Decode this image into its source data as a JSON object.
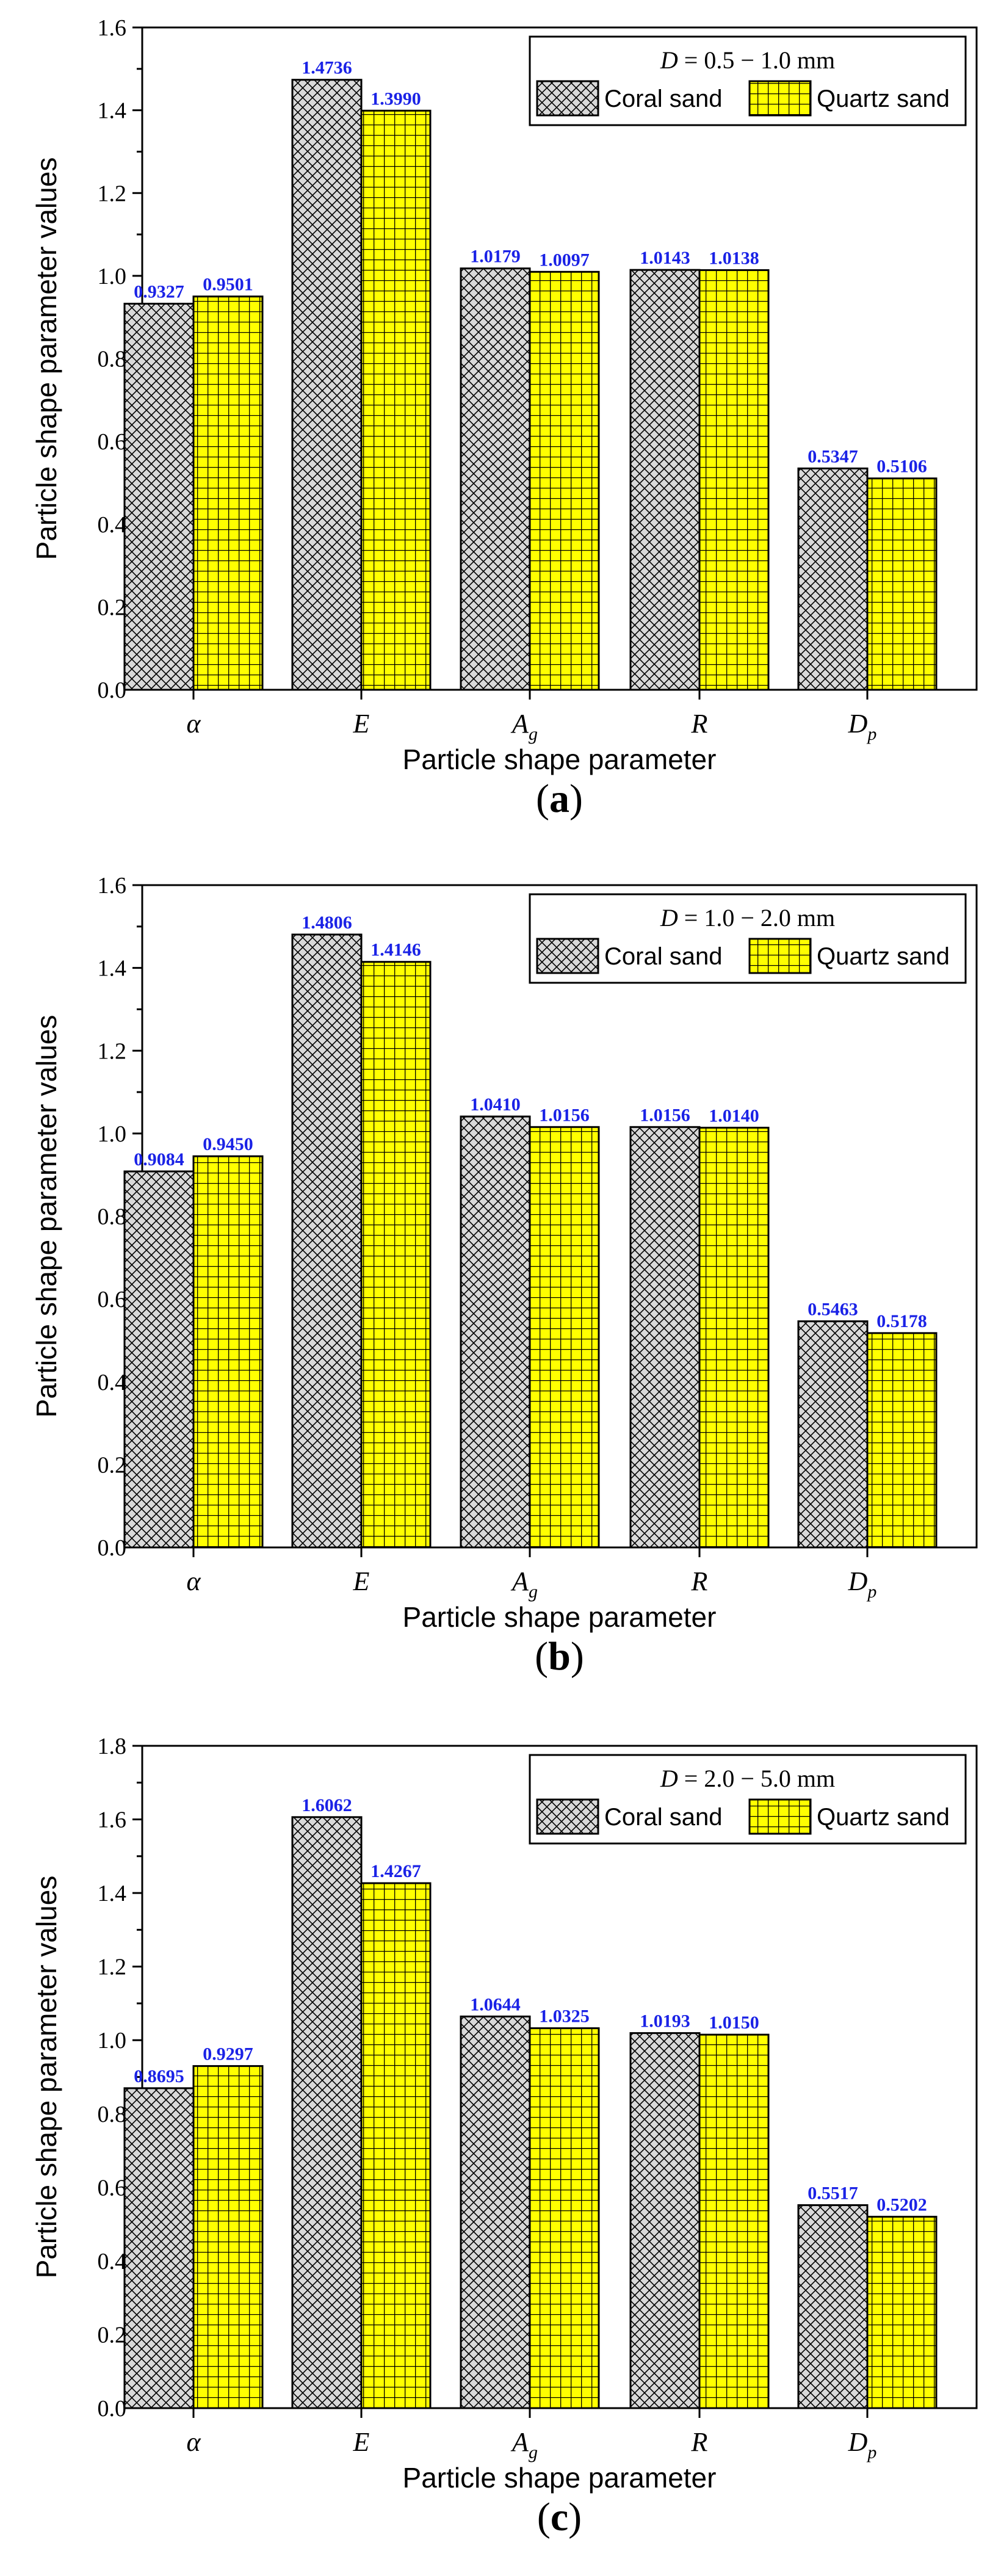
{
  "colors": {
    "coral_fill": "#d9d9d9",
    "quartz_fill": "#ffff00",
    "label_color": "#1a22e6"
  },
  "chart_data": [
    {
      "type": "bar",
      "panel_label": "a",
      "title": "",
      "xlabel": "Particle shape parameter",
      "ylabel": "Particle shape parameter values",
      "ylim": [
        0,
        1.6
      ],
      "yticks": [
        0.0,
        0.2,
        0.4,
        0.6,
        0.8,
        1.0,
        1.2,
        1.4,
        1.6
      ],
      "categories": [
        {
          "main": "α",
          "sub": ""
        },
        {
          "main": "E",
          "sub": ""
        },
        {
          "main": "A",
          "sub": "g"
        },
        {
          "main": "R",
          "sub": ""
        },
        {
          "main": "D",
          "sub": "p"
        }
      ],
      "legend_title": "D = 0.5 − 1.0 mm",
      "legend_title_var": "D",
      "legend_title_rest": " = 0.5 − 1.0 mm",
      "legend_position": "top-right",
      "series": [
        {
          "name": "Coral sand",
          "pattern": "crosshatch",
          "values": [
            0.9327,
            1.4736,
            1.0179,
            1.0143,
            0.5347
          ],
          "labels": [
            "0.9327",
            "1.4736",
            "1.0179",
            "1.0143",
            "0.5347"
          ]
        },
        {
          "name": "Quartz sand",
          "pattern": "grid",
          "values": [
            0.9501,
            1.399,
            1.0097,
            1.0138,
            0.5106
          ],
          "labels": [
            "0.9501",
            "1.3990",
            "1.0097",
            "1.0138",
            "0.5106"
          ]
        }
      ]
    },
    {
      "type": "bar",
      "panel_label": "b",
      "title": "",
      "xlabel": "Particle shape parameter",
      "ylabel": "Particle shape parameter values",
      "ylim": [
        0,
        1.6
      ],
      "yticks": [
        0.0,
        0.2,
        0.4,
        0.6,
        0.8,
        1.0,
        1.2,
        1.4,
        1.6
      ],
      "categories": [
        {
          "main": "α",
          "sub": ""
        },
        {
          "main": "E",
          "sub": ""
        },
        {
          "main": "A",
          "sub": "g"
        },
        {
          "main": "R",
          "sub": ""
        },
        {
          "main": "D",
          "sub": "p"
        }
      ],
      "legend_title": "D = 1.0 − 2.0 mm",
      "legend_title_var": "D",
      "legend_title_rest": " = 1.0 − 2.0 mm",
      "legend_position": "top-right",
      "series": [
        {
          "name": "Coral sand",
          "pattern": "crosshatch",
          "values": [
            0.9084,
            1.4806,
            1.041,
            1.0156,
            0.5463
          ],
          "labels": [
            "0.9084",
            "1.4806",
            "1.0410",
            "1.0156",
            "0.5463"
          ]
        },
        {
          "name": "Quartz sand",
          "pattern": "grid",
          "values": [
            0.945,
            1.4146,
            1.0156,
            1.014,
            0.5178
          ],
          "labels": [
            "0.9450",
            "1.4146",
            "1.0156",
            "1.0140",
            "0.5178"
          ]
        }
      ]
    },
    {
      "type": "bar",
      "panel_label": "c",
      "title": "",
      "xlabel": "Particle shape parameter",
      "ylabel": "Particle shape parameter values",
      "ylim": [
        0,
        1.8
      ],
      "yticks": [
        0.0,
        0.2,
        0.4,
        0.6,
        0.8,
        1.0,
        1.2,
        1.4,
        1.6,
        1.8
      ],
      "categories": [
        {
          "main": "α",
          "sub": ""
        },
        {
          "main": "E",
          "sub": ""
        },
        {
          "main": "A",
          "sub": "g"
        },
        {
          "main": "R",
          "sub": ""
        },
        {
          "main": "D",
          "sub": "p"
        }
      ],
      "legend_title": "D = 2.0 − 5.0 mm",
      "legend_title_var": "D",
      "legend_title_rest": " = 2.0 − 5.0 mm",
      "legend_position": "top-right",
      "series": [
        {
          "name": "Coral sand",
          "pattern": "crosshatch",
          "values": [
            0.8695,
            1.6062,
            1.0644,
            1.0193,
            0.5517
          ],
          "labels": [
            "0.8695",
            "1.6062",
            "1.0644",
            "1.0193",
            "0.5517"
          ]
        },
        {
          "name": "Quartz sand",
          "pattern": "grid",
          "values": [
            0.9297,
            1.4267,
            1.0325,
            1.015,
            0.5202
          ],
          "labels": [
            "0.9297",
            "1.4267",
            "1.0325",
            "1.0150",
            "0.5202"
          ]
        }
      ]
    }
  ]
}
